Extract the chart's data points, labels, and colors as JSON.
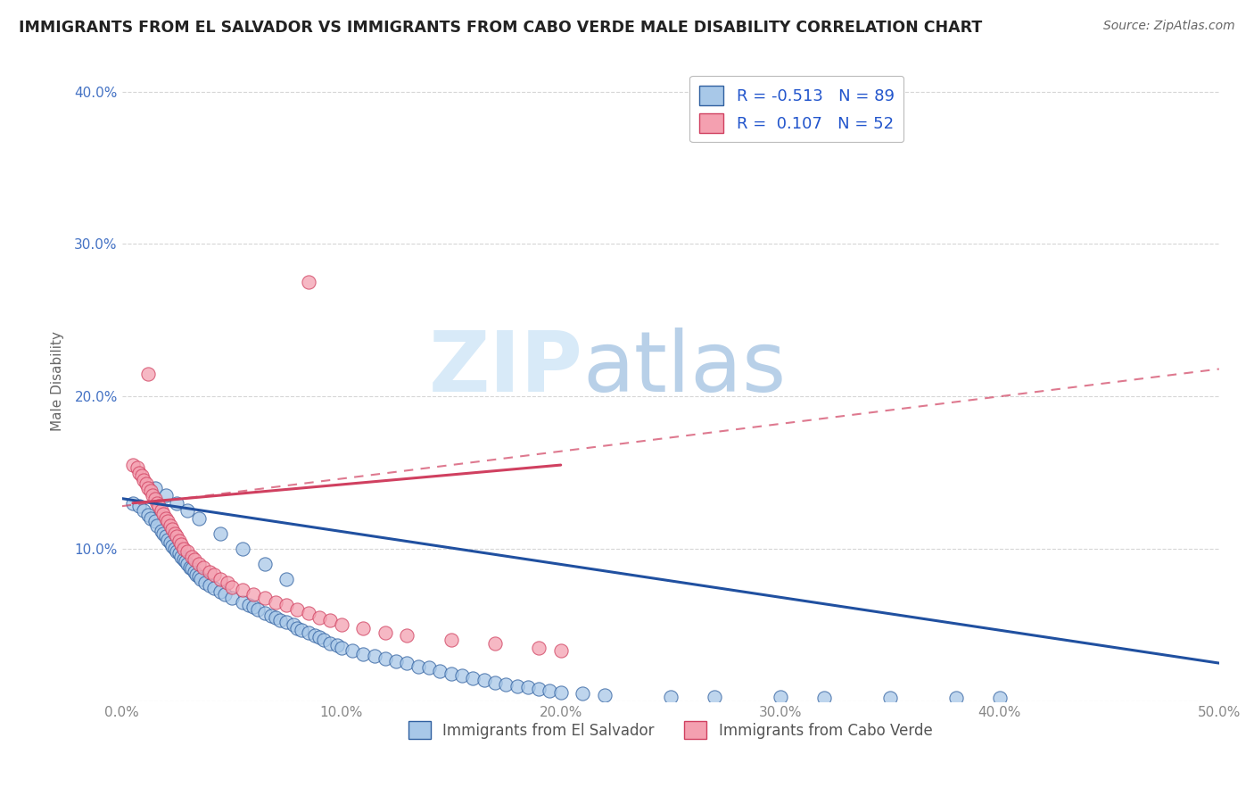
{
  "title": "IMMIGRANTS FROM EL SALVADOR VS IMMIGRANTS FROM CABO VERDE MALE DISABILITY CORRELATION CHART",
  "source": "Source: ZipAtlas.com",
  "ylabel": "Male Disability",
  "xlim": [
    0.0,
    0.5
  ],
  "ylim": [
    0.0,
    0.42
  ],
  "xticks": [
    0.0,
    0.1,
    0.2,
    0.3,
    0.4,
    0.5
  ],
  "xticklabels": [
    "0.0%",
    "10.0%",
    "20.0%",
    "30.0%",
    "40.0%",
    "50.0%"
  ],
  "yticks": [
    0.0,
    0.1,
    0.2,
    0.3,
    0.4
  ],
  "yticklabels": [
    "",
    "10.0%",
    "20.0%",
    "30.0%",
    "40.0%"
  ],
  "color_blue": "#a8c8e8",
  "color_pink": "#f4a0b0",
  "edge_blue": "#3060a0",
  "edge_pink": "#d04060",
  "line_blue": "#2050a0",
  "line_pink": "#d04060",
  "background_color": "#ffffff",
  "watermark_color": "#d8eaf8",
  "watermark_color2": "#b8d0e8",
  "grid_color": "#cccccc",
  "tick_label_color_y": "#4472c4",
  "tick_label_color_x": "#888888",
  "title_color": "#222222",
  "ylabel_color": "#666666",
  "source_color": "#666666",
  "blue_x": [
    0.005,
    0.008,
    0.01,
    0.012,
    0.013,
    0.015,
    0.016,
    0.018,
    0.019,
    0.02,
    0.021,
    0.022,
    0.023,
    0.024,
    0.025,
    0.026,
    0.027,
    0.028,
    0.029,
    0.03,
    0.031,
    0.032,
    0.033,
    0.034,
    0.035,
    0.036,
    0.038,
    0.04,
    0.042,
    0.045,
    0.047,
    0.05,
    0.055,
    0.058,
    0.06,
    0.062,
    0.065,
    0.068,
    0.07,
    0.072,
    0.075,
    0.078,
    0.08,
    0.082,
    0.085,
    0.088,
    0.09,
    0.092,
    0.095,
    0.098,
    0.1,
    0.105,
    0.11,
    0.115,
    0.12,
    0.125,
    0.13,
    0.135,
    0.14,
    0.145,
    0.15,
    0.155,
    0.16,
    0.165,
    0.17,
    0.175,
    0.18,
    0.185,
    0.19,
    0.195,
    0.2,
    0.21,
    0.22,
    0.25,
    0.27,
    0.3,
    0.32,
    0.35,
    0.38,
    0.4,
    0.015,
    0.02,
    0.025,
    0.03,
    0.035,
    0.045,
    0.055,
    0.065,
    0.075
  ],
  "blue_y": [
    0.13,
    0.128,
    0.125,
    0.122,
    0.12,
    0.118,
    0.115,
    0.112,
    0.11,
    0.108,
    0.106,
    0.104,
    0.102,
    0.1,
    0.098,
    0.097,
    0.095,
    0.093,
    0.092,
    0.09,
    0.088,
    0.087,
    0.085,
    0.083,
    0.082,
    0.08,
    0.078,
    0.076,
    0.074,
    0.072,
    0.07,
    0.068,
    0.065,
    0.063,
    0.062,
    0.06,
    0.058,
    0.056,
    0.055,
    0.053,
    0.052,
    0.05,
    0.048,
    0.047,
    0.045,
    0.043,
    0.042,
    0.04,
    0.038,
    0.037,
    0.035,
    0.033,
    0.031,
    0.03,
    0.028,
    0.026,
    0.025,
    0.023,
    0.022,
    0.02,
    0.018,
    0.017,
    0.015,
    0.014,
    0.012,
    0.011,
    0.01,
    0.009,
    0.008,
    0.007,
    0.006,
    0.005,
    0.004,
    0.003,
    0.003,
    0.003,
    0.002,
    0.002,
    0.002,
    0.002,
    0.14,
    0.135,
    0.13,
    0.125,
    0.12,
    0.11,
    0.1,
    0.09,
    0.08
  ],
  "pink_x": [
    0.005,
    0.007,
    0.008,
    0.009,
    0.01,
    0.011,
    0.012,
    0.013,
    0.014,
    0.015,
    0.016,
    0.017,
    0.018,
    0.019,
    0.02,
    0.021,
    0.022,
    0.023,
    0.024,
    0.025,
    0.026,
    0.027,
    0.028,
    0.03,
    0.032,
    0.033,
    0.035,
    0.037,
    0.04,
    0.042,
    0.045,
    0.048,
    0.05,
    0.055,
    0.06,
    0.065,
    0.07,
    0.075,
    0.08,
    0.085,
    0.09,
    0.095,
    0.1,
    0.11,
    0.12,
    0.13,
    0.15,
    0.17,
    0.19,
    0.2,
    0.085,
    0.012
  ],
  "pink_y": [
    0.155,
    0.153,
    0.15,
    0.148,
    0.145,
    0.143,
    0.14,
    0.138,
    0.135,
    0.133,
    0.13,
    0.128,
    0.125,
    0.123,
    0.12,
    0.118,
    0.115,
    0.113,
    0.11,
    0.108,
    0.105,
    0.103,
    0.1,
    0.098,
    0.095,
    0.093,
    0.09,
    0.088,
    0.085,
    0.083,
    0.08,
    0.078,
    0.075,
    0.073,
    0.07,
    0.068,
    0.065,
    0.063,
    0.06,
    0.058,
    0.055,
    0.053,
    0.05,
    0.048,
    0.045,
    0.043,
    0.04,
    0.038,
    0.035,
    0.033,
    0.275,
    0.215
  ],
  "trend_blue_x0": 0.0,
  "trend_blue_x1": 0.5,
  "trend_blue_y0": 0.133,
  "trend_blue_y1": 0.025,
  "trend_pink_solid_x0": 0.005,
  "trend_pink_solid_x1": 0.2,
  "trend_pink_solid_y0": 0.13,
  "trend_pink_solid_y1": 0.155,
  "trend_pink_dash_x0": 0.0,
  "trend_pink_dash_x1": 0.5,
  "trend_pink_dash_y0": 0.128,
  "trend_pink_dash_y1": 0.218
}
